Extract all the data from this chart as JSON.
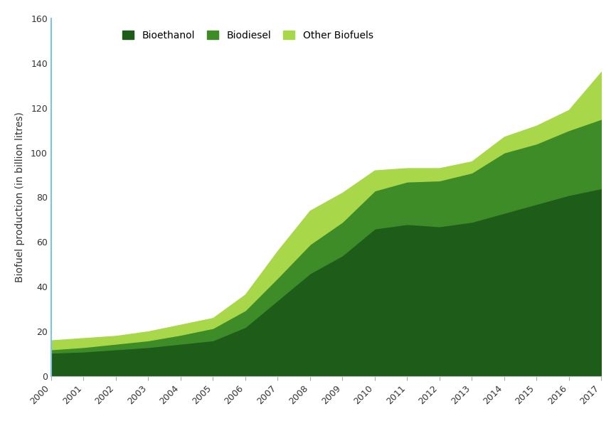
{
  "years": [
    2000,
    2001,
    2002,
    2003,
    2004,
    2005,
    2006,
    2007,
    2008,
    2009,
    2010,
    2011,
    2012,
    2013,
    2014,
    2015,
    2016,
    2017
  ],
  "bioethanol": [
    10.5,
    11.0,
    12.0,
    13.0,
    14.5,
    16.0,
    22.0,
    34.0,
    46.0,
    54.0,
    66.0,
    68.0,
    67.0,
    69.0,
    73.0,
    77.0,
    81.0,
    84.0
  ],
  "biodiesel": [
    1.5,
    2.0,
    2.5,
    3.0,
    4.0,
    5.5,
    7.5,
    10.0,
    13.0,
    15.0,
    17.0,
    19.0,
    20.5,
    22.0,
    27.0,
    27.0,
    29.0,
    31.0
  ],
  "other_biofuels": [
    4.0,
    4.0,
    3.5,
    4.0,
    4.5,
    4.5,
    7.0,
    12.0,
    15.0,
    13.0,
    9.0,
    6.0,
    5.5,
    5.0,
    7.0,
    8.0,
    9.0,
    21.0
  ],
  "colors": {
    "bioethanol": "#1e5c1a",
    "biodiesel": "#3d8c28",
    "other_biofuels": "#a8d84a"
  },
  "ylabel": "Biofuel production (in billion litres)",
  "ylim": [
    0,
    160
  ],
  "yticks": [
    0,
    20,
    40,
    60,
    80,
    100,
    120,
    140,
    160
  ],
  "legend_labels": [
    "Bioethanol",
    "Biodiesel",
    "Other Biofuels"
  ],
  "background_color": "#ffffff",
  "left_spine_color": "#7dc4e8",
  "bottom_spine_color": "#c0c0c0"
}
